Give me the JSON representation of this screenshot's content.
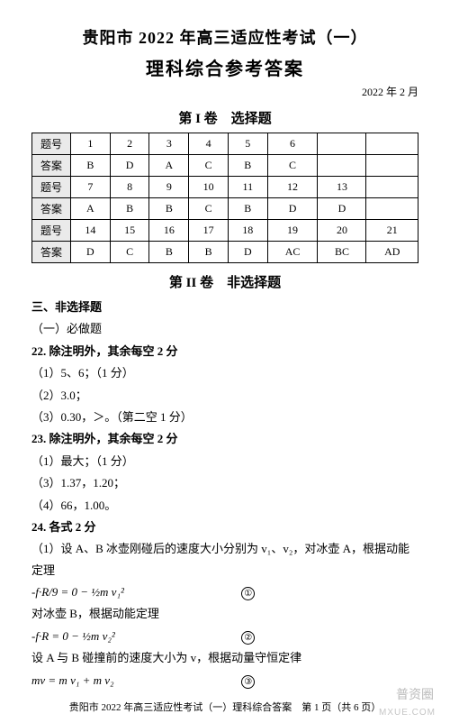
{
  "header": {
    "title_main": "贵阳市 2022 年高三适应性考试（一）",
    "title_sub": "理科综合参考答案",
    "date": "2022 年 2 月"
  },
  "section1": {
    "title": "第 I 卷　选择题",
    "row_label_q": "题号",
    "row_label_a": "答案",
    "rows": [
      {
        "nums": [
          "1",
          "2",
          "3",
          "4",
          "5",
          "6",
          "",
          ""
        ],
        "ans": [
          "B",
          "D",
          "A",
          "C",
          "B",
          "C",
          "",
          ""
        ]
      },
      {
        "nums": [
          "7",
          "8",
          "9",
          "10",
          "11",
          "12",
          "13",
          ""
        ],
        "ans": [
          "A",
          "B",
          "B",
          "C",
          "B",
          "D",
          "D",
          ""
        ]
      },
      {
        "nums": [
          "14",
          "15",
          "16",
          "17",
          "18",
          "19",
          "20",
          "21"
        ],
        "ans": [
          "D",
          "C",
          "B",
          "B",
          "D",
          "AC",
          "BC",
          "AD"
        ]
      }
    ]
  },
  "section2": {
    "title": "第 II 卷　非选择题",
    "heading3": "三、非选择题",
    "sub1": "（一）必做题",
    "q22": {
      "title": "22. 除注明外，其余每空 2 分",
      "lines": [
        "（1）5、6；（1 分）",
        "（2）3.0；",
        "（3）0.30，＞。（第二空 1 分）"
      ]
    },
    "q23": {
      "title": "23. 除注明外，其余每空 2 分",
      "lines": [
        "（1）最大；（1 分）",
        "（3）1.37，1.20；",
        "（4）66，1.00。"
      ]
    },
    "q24": {
      "title": "24. 各式 2 分",
      "intro": "（1）设 A、B 冰壶刚碰后的速度大小分别为 v₁、v₂，对冰壶 A，根据动能定理",
      "eq1_left": "-f·R/9 = 0 − ½m v₁²",
      "eq1_num": "①",
      "mid": "对冰壶 B，根据动能定理",
      "eq2_left": "-f·R = 0 − ½m v₂²",
      "eq2_num": "②",
      "line3": "设 A 与 B 碰撞前的速度大小为 v，根据动量守恒定律",
      "eq3_left": "mv = m v₁ + m v₂",
      "eq3_num": "③"
    }
  },
  "footer": "贵阳市 2022 年高三适应性考试（一）理科综合答案　第 1 页（共 6 页）",
  "watermark": "普资圈",
  "watermark2": "MXUE.COM"
}
